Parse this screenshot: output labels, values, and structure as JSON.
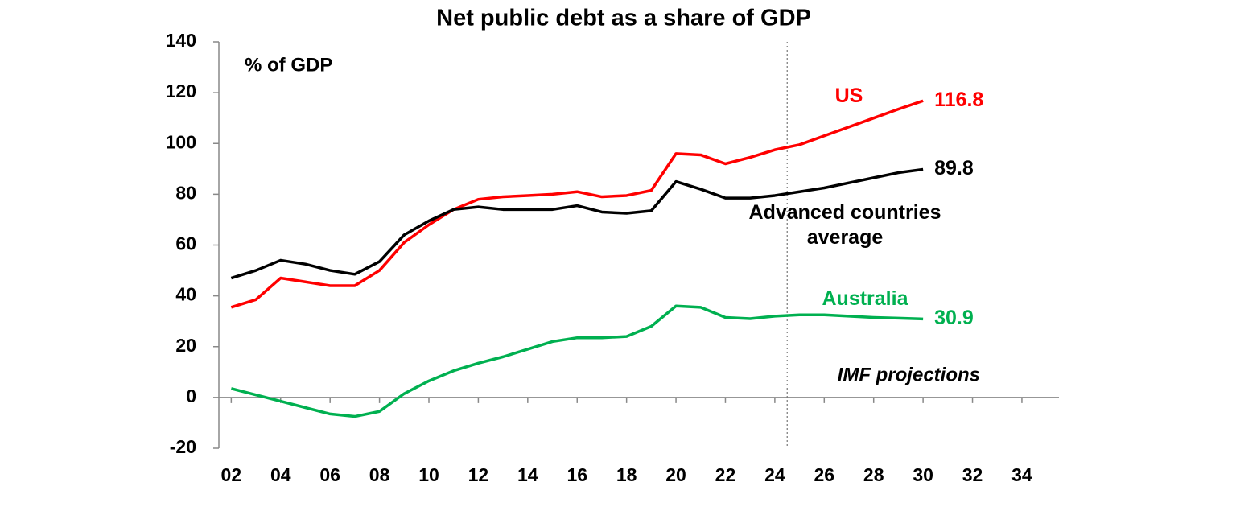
{
  "chart_data": {
    "type": "line",
    "title": "Net public debt as a share of GDP",
    "y_axis_label": "% of GDP",
    "annotation": "IMF projections",
    "projection_start": 24.5,
    "x": [
      2,
      3,
      4,
      5,
      6,
      7,
      8,
      9,
      10,
      11,
      12,
      13,
      14,
      15,
      16,
      17,
      18,
      19,
      20,
      21,
      22,
      23,
      24,
      25,
      26,
      27,
      28,
      29,
      30
    ],
    "series": [
      {
        "name": "US",
        "color": "#ff0000",
        "values": [
          35.5,
          38.5,
          47,
          45.5,
          44,
          44,
          50,
          61,
          68,
          74,
          78,
          79,
          79.5,
          80,
          81,
          79,
          79.5,
          81.5,
          96,
          95.5,
          92,
          94.5,
          97.5,
          99.5,
          103,
          106.5,
          110,
          113.5,
          116.8
        ]
      },
      {
        "name": "Advanced countries average",
        "color": "#000000",
        "values": [
          47,
          50,
          54,
          52.5,
          50,
          48.5,
          53.5,
          64,
          69.5,
          74,
          75,
          74,
          74,
          74,
          75.5,
          73,
          72.5,
          73.5,
          85,
          82,
          78.5,
          78.5,
          79.5,
          81,
          82.5,
          84.5,
          86.5,
          88.5,
          89.8
        ]
      },
      {
        "name": "Australia",
        "color": "#00b050",
        "values": [
          3.5,
          1,
          -1.5,
          -4,
          -6.5,
          -7.5,
          -5.5,
          1.5,
          6.5,
          10.5,
          13.5,
          16,
          19,
          22,
          23.5,
          23.5,
          24,
          28,
          36,
          35.5,
          31.5,
          31,
          32,
          32.5,
          32.5,
          32,
          31.5,
          31.2,
          30.9
        ]
      }
    ],
    "label_last": true,
    "xlim": [
      1.5,
      35.5
    ],
    "xticks": [
      {
        "value": 2,
        "label": "02"
      },
      {
        "value": 4,
        "label": "04"
      },
      {
        "value": 6,
        "label": "06"
      },
      {
        "value": 8,
        "label": "08"
      },
      10,
      12,
      14,
      16,
      18,
      20,
      22,
      24,
      26,
      28,
      30,
      32,
      34
    ],
    "ylim": [
      -20,
      140
    ],
    "yticks": [
      -20,
      0,
      20,
      40,
      60,
      80,
      100,
      120,
      140
    ]
  }
}
